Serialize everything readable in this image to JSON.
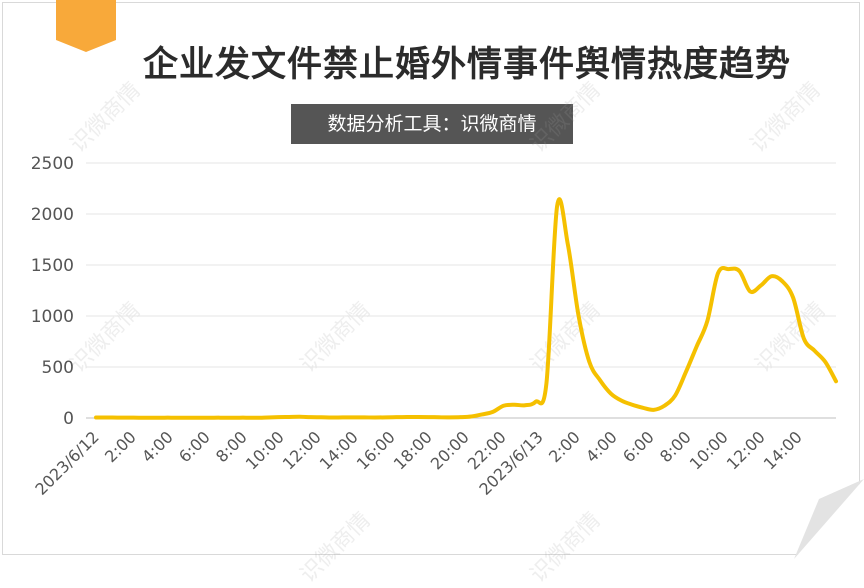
{
  "title": "企业发文件禁止婚外情事件舆情热度趋势",
  "subtitle": "数据分析工具：识微商情",
  "watermark": "识微商情",
  "colors": {
    "line": "#F5C000",
    "ribbon": "#F8A93A",
    "grid": "#e6e6e6",
    "axis_text": "#555555",
    "banner": "#555555"
  },
  "chart_data": {
    "type": "line",
    "title": "企业发文件禁止婚外情事件舆情热度趋势",
    "xlabel": "",
    "ylabel": "",
    "ylim": [
      0,
      2500
    ],
    "yticks": [
      0,
      500,
      1000,
      1500,
      2000,
      2500
    ],
    "grid": true,
    "xtick_labels": [
      "2023/6/12",
      "2:00",
      "4:00",
      "6:00",
      "8:00",
      "10:00",
      "12:00",
      "14:00",
      "16:00",
      "18:00",
      "20:00",
      "22:00",
      "2023/6/13",
      "2:00",
      "4:00",
      "6:00",
      "8:00",
      "10:00",
      "12:00",
      "14:00"
    ],
    "series": [
      {
        "values": [
          5,
          5,
          4,
          4,
          3,
          3,
          3,
          3,
          2,
          2,
          2,
          3,
          3,
          3,
          3,
          2,
          5,
          8,
          10,
          12,
          8,
          7,
          5,
          6,
          6,
          6,
          5,
          6,
          8,
          10,
          10,
          9,
          7,
          6,
          8,
          15,
          35,
          60,
          120,
          130,
          125,
          160,
          340,
          2080,
          1700,
          1000,
          550,
          370,
          240,
          170,
          130,
          100,
          80,
          120,
          220,
          450,
          700,
          950,
          1420,
          1460,
          1440,
          1240,
          1300,
          1390,
          1340,
          1180,
          780,
          660,
          550,
          360
        ]
      }
    ]
  }
}
